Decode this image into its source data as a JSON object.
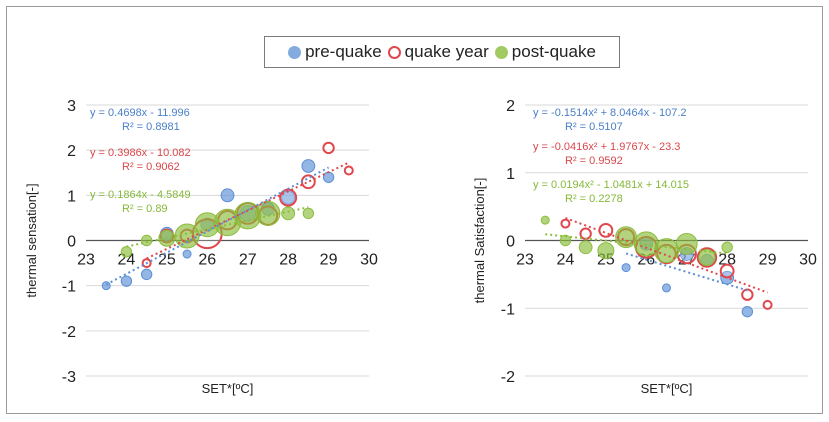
{
  "legend": {
    "items": [
      {
        "label": "pre-quake",
        "color": "#5b8fd6",
        "style": "filled"
      },
      {
        "label": "quake year",
        "color": "#e0474c",
        "style": "hollow"
      },
      {
        "label": "post-quake",
        "color": "#8bbd3b",
        "style": "filled"
      }
    ]
  },
  "chart_data": [
    {
      "type": "scatter",
      "xlabel": "SET*[ºC]",
      "ylabel": "thermal sensation[-]",
      "xlim": [
        23,
        30
      ],
      "ylim": [
        -3,
        3
      ],
      "xticks": [
        "23",
        "24",
        "25",
        "26",
        "27",
        "28",
        "29",
        "30"
      ],
      "yticks": [
        "-3",
        "-2",
        "-1",
        "0",
        "1",
        "2",
        "3"
      ],
      "grid": "horizontal",
      "series": [
        {
          "name": "pre-quake",
          "color": "#5b8fd6",
          "points": [
            [
              23.5,
              -1.0,
              1
            ],
            [
              24.0,
              -0.9,
              1.3
            ],
            [
              24.5,
              -0.75,
              1.3
            ],
            [
              25.0,
              0.15,
              1.6
            ],
            [
              25.5,
              -0.3,
              1
            ],
            [
              26.0,
              0.35,
              1.6
            ],
            [
              26.5,
              1.0,
              1.6
            ],
            [
              27.0,
              0.6,
              2
            ],
            [
              27.5,
              0.7,
              1.6
            ],
            [
              28.0,
              0.95,
              1.6
            ],
            [
              28.5,
              1.65,
              1.6
            ],
            [
              29.0,
              1.4,
              1.3
            ]
          ]
        },
        {
          "name": "quake year",
          "color": "#e0474c",
          "points": [
            [
              24.5,
              -0.5,
              1
            ],
            [
              25.0,
              0.1,
              1.6
            ],
            [
              25.5,
              0.1,
              1.6
            ],
            [
              26.0,
              0.15,
              3.6
            ],
            [
              26.5,
              0.45,
              2.3
            ],
            [
              27.0,
              0.6,
              2.6
            ],
            [
              27.5,
              0.55,
              2.3
            ],
            [
              28.0,
              0.95,
              2
            ],
            [
              28.5,
              1.3,
              1.6
            ],
            [
              29.0,
              2.05,
              1.3
            ],
            [
              29.5,
              1.55,
              1
            ]
          ]
        },
        {
          "name": "post-quake",
          "color": "#8bbd3b",
          "points": [
            [
              24.0,
              -0.25,
              1.3
            ],
            [
              24.5,
              0.0,
              1.3
            ],
            [
              25.0,
              0.05,
              2
            ],
            [
              25.5,
              0.1,
              3
            ],
            [
              26.0,
              0.35,
              3
            ],
            [
              26.5,
              0.4,
              3.3
            ],
            [
              27.0,
              0.55,
              3.3
            ],
            [
              27.5,
              0.6,
              3
            ],
            [
              28.0,
              0.6,
              1.6
            ],
            [
              28.5,
              0.6,
              1.3
            ]
          ]
        }
      ],
      "annotations": [
        {
          "lines": [
            "y = 0.4698x - 11.996",
            "R² = 0.8981"
          ],
          "color": "#4a7fc8"
        },
        {
          "lines": [
            "y = 0.3986x - 10.082",
            "R² = 0.9062"
          ],
          "color": "#d9474c"
        },
        {
          "lines": [
            "y = 0.1864x - 4.5849",
            "R² = 0.89"
          ],
          "color": "#86b93a"
        }
      ]
    },
    {
      "type": "scatter",
      "xlabel": "SET*[ºC]",
      "ylabel": "thermal Satisfaction[-]",
      "xlim": [
        23,
        30
      ],
      "ylim": [
        -2,
        2
      ],
      "xticks": [
        "23",
        "24",
        "25",
        "26",
        "27",
        "28",
        "29",
        "30"
      ],
      "yticks": [
        "-2",
        "-1",
        "0",
        "1",
        "2"
      ],
      "grid": "horizontal",
      "series": [
        {
          "name": "pre-quake",
          "color": "#5b8fd6",
          "points": [
            [
              25.5,
              -0.4,
              1
            ],
            [
              26.0,
              -0.05,
              1.6
            ],
            [
              26.5,
              -0.7,
              1
            ],
            [
              27.0,
              -0.2,
              1.6
            ],
            [
              27.5,
              -0.3,
              1.6
            ],
            [
              28.0,
              -0.55,
              1.6
            ],
            [
              28.5,
              -1.05,
              1.3
            ]
          ]
        },
        {
          "name": "quake year",
          "color": "#e0474c",
          "points": [
            [
              24.0,
              0.25,
              1
            ],
            [
              24.5,
              0.1,
              1.3
            ],
            [
              25.0,
              0.15,
              1.6
            ],
            [
              25.5,
              0.05,
              2
            ],
            [
              26.0,
              -0.1,
              2.6
            ],
            [
              26.5,
              -0.2,
              2.3
            ],
            [
              27.0,
              -0.2,
              2.3
            ],
            [
              27.5,
              -0.25,
              2.3
            ],
            [
              28.0,
              -0.45,
              1.6
            ],
            [
              28.5,
              -0.8,
              1.3
            ],
            [
              29.0,
              -0.95,
              1
            ]
          ]
        },
        {
          "name": "post-quake",
          "color": "#8bbd3b",
          "points": [
            [
              23.5,
              0.3,
              1
            ],
            [
              24.0,
              0.0,
              1.3
            ],
            [
              24.5,
              -0.1,
              1.6
            ],
            [
              25.0,
              -0.15,
              2
            ],
            [
              25.5,
              0.05,
              2.6
            ],
            [
              26.0,
              -0.05,
              3
            ],
            [
              26.5,
              -0.15,
              3
            ],
            [
              27.0,
              -0.05,
              2.6
            ],
            [
              27.5,
              -0.25,
              2
            ],
            [
              28.0,
              -0.1,
              1.3
            ]
          ]
        }
      ],
      "annotations": [
        {
          "lines": [
            "y = -0.1514x² + 8.0464x - 107.2",
            "R² = 0.5107"
          ],
          "color": "#4a7fc8"
        },
        {
          "lines": [
            "y = -0.0416x² + 1.9767x - 23.3",
            "R² = 0.9592"
          ],
          "color": "#d9474c"
        },
        {
          "lines": [
            "y = 0.0194x² - 1.0481x + 14.015",
            "R² = 0.2278"
          ],
          "color": "#86b93a"
        }
      ]
    }
  ]
}
